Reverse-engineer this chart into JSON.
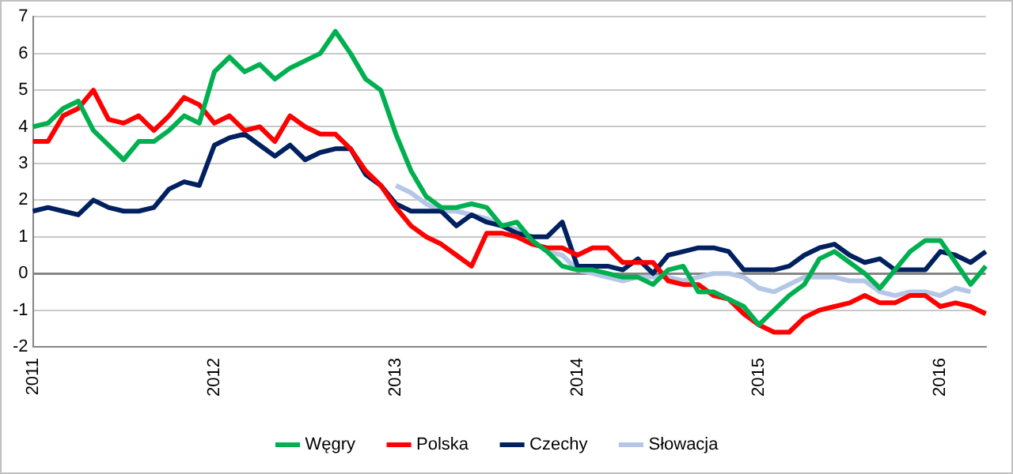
{
  "chart_data": {
    "type": "line",
    "categories": [
      "2011",
      null,
      null,
      null,
      null,
      null,
      null,
      null,
      null,
      null,
      null,
      null,
      "2012",
      null,
      null,
      null,
      null,
      null,
      null,
      null,
      null,
      null,
      null,
      null,
      "2013",
      null,
      null,
      null,
      null,
      null,
      null,
      null,
      null,
      null,
      null,
      null,
      "2014",
      null,
      null,
      null,
      null,
      null,
      null,
      null,
      null,
      null,
      null,
      null,
      "2015",
      null,
      null,
      null,
      null,
      null,
      null,
      null,
      null,
      null,
      null,
      null,
      "2016",
      null,
      null,
      null
    ],
    "series": [
      {
        "name": "Węgry",
        "color": "#00b050",
        "values": [
          4.0,
          4.1,
          4.5,
          4.7,
          3.9,
          3.5,
          3.1,
          3.6,
          3.6,
          3.9,
          4.3,
          4.1,
          5.5,
          5.9,
          5.5,
          5.7,
          5.3,
          5.6,
          5.8,
          6.0,
          6.6,
          6.0,
          5.3,
          5.0,
          3.8,
          2.8,
          2.1,
          1.8,
          1.8,
          1.9,
          1.8,
          1.3,
          1.4,
          0.9,
          0.6,
          0.2,
          0.1,
          0.1,
          0.0,
          -0.1,
          -0.1,
          -0.3,
          0.1,
          0.2,
          -0.5,
          -0.5,
          -0.7,
          -0.9,
          -1.4,
          -1.0,
          -0.6,
          -0.3,
          0.4,
          0.6,
          0.3,
          0.0,
          -0.4,
          0.1,
          0.6,
          0.9,
          0.9,
          0.3,
          -0.3,
          0.2
        ]
      },
      {
        "name": "Polska",
        "color": "#ff0000",
        "values": [
          3.6,
          3.6,
          4.3,
          4.5,
          5.0,
          4.2,
          4.1,
          4.3,
          3.9,
          4.3,
          4.8,
          4.6,
          4.1,
          4.3,
          3.9,
          4.0,
          3.6,
          4.3,
          4.0,
          3.8,
          3.8,
          3.4,
          2.8,
          2.4,
          1.8,
          1.3,
          1.0,
          0.8,
          0.5,
          0.2,
          1.1,
          1.1,
          1.0,
          0.8,
          0.7,
          0.7,
          0.5,
          0.7,
          0.7,
          0.3,
          0.3,
          0.3,
          -0.2,
          -0.3,
          -0.3,
          -0.6,
          -0.7,
          -1.1,
          -1.4,
          -1.6,
          -1.6,
          -1.2,
          -1.0,
          -0.9,
          -0.8,
          -0.6,
          -0.8,
          -0.8,
          -0.6,
          -0.6,
          -0.9,
          -0.8,
          -0.9,
          -1.1
        ]
      },
      {
        "name": "Czechy",
        "color": "#002060",
        "values": [
          1.7,
          1.8,
          1.7,
          1.6,
          2.0,
          1.8,
          1.7,
          1.7,
          1.8,
          2.3,
          2.5,
          2.4,
          3.5,
          3.7,
          3.8,
          3.5,
          3.2,
          3.5,
          3.1,
          3.3,
          3.4,
          3.4,
          2.7,
          2.4,
          1.9,
          1.7,
          1.7,
          1.7,
          1.3,
          1.6,
          1.4,
          1.3,
          1.1,
          1.0,
          1.0,
          1.4,
          0.2,
          0.2,
          0.2,
          0.1,
          0.4,
          0.0,
          0.5,
          0.6,
          0.7,
          0.7,
          0.6,
          0.1,
          0.1,
          0.1,
          0.2,
          0.5,
          0.7,
          0.8,
          0.5,
          0.3,
          0.4,
          0.1,
          0.1,
          0.1,
          0.6,
          0.5,
          0.3,
          0.6
        ]
      },
      {
        "name": "Słowacja",
        "color": "#b4c7e7",
        "values": [
          null,
          null,
          null,
          null,
          null,
          null,
          null,
          null,
          null,
          null,
          null,
          null,
          null,
          null,
          null,
          null,
          null,
          null,
          null,
          null,
          null,
          null,
          null,
          null,
          2.4,
          2.2,
          1.9,
          1.7,
          1.7,
          1.6,
          1.5,
          1.3,
          1.2,
          0.9,
          0.6,
          0.5,
          0.1,
          0.0,
          -0.1,
          -0.2,
          -0.1,
          -0.1,
          -0.1,
          -0.2,
          -0.1,
          0.0,
          0.0,
          -0.1,
          -0.4,
          -0.5,
          -0.3,
          -0.1,
          -0.1,
          -0.1,
          -0.2,
          -0.2,
          -0.5,
          -0.6,
          -0.5,
          -0.5,
          -0.6,
          -0.4,
          -0.5,
          null
        ]
      }
    ],
    "ylim": [
      -2,
      7
    ],
    "yticks": [
      -2,
      -1,
      0,
      1,
      2,
      3,
      4,
      5,
      6,
      7
    ],
    "grid": "y",
    "legend": "bottom",
    "marker": "none",
    "line_style": "solid"
  }
}
